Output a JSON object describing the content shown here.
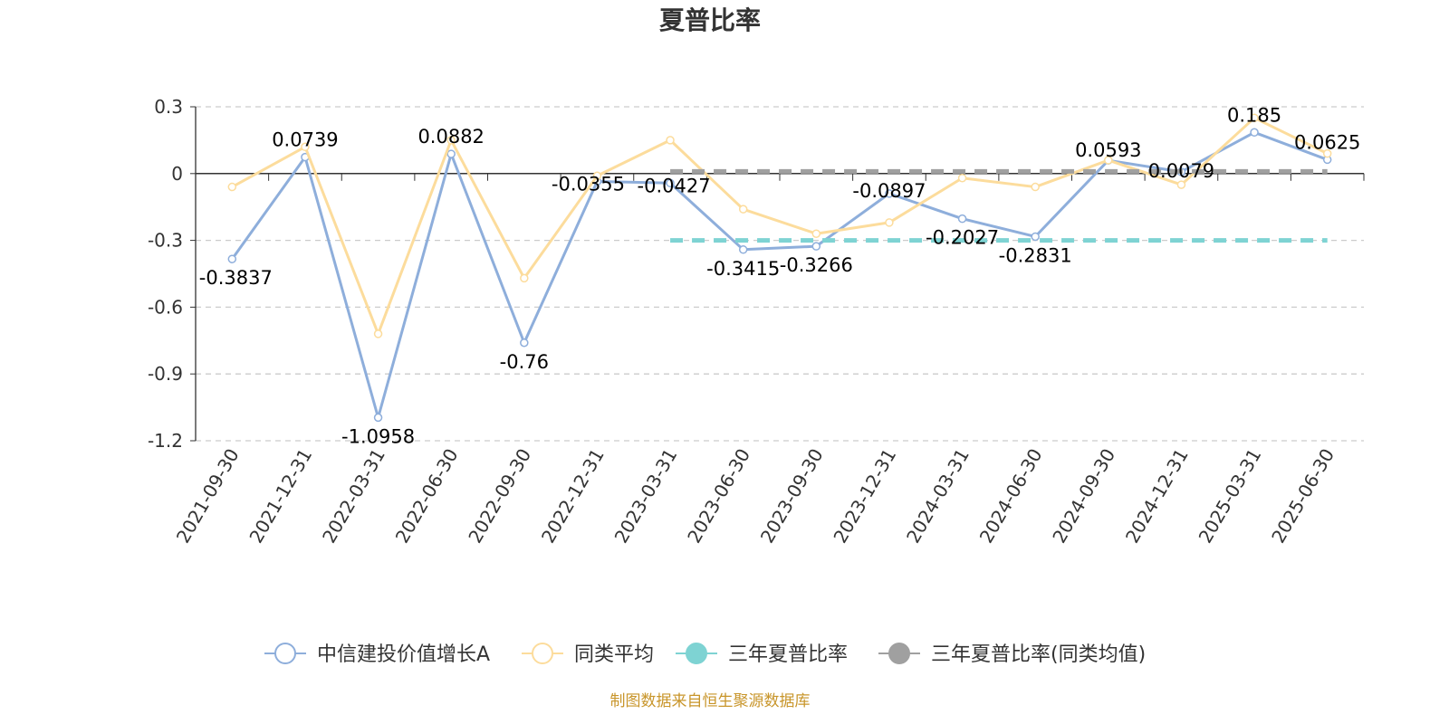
{
  "chart_data": {
    "type": "line",
    "title": "夏普比率",
    "xlabel": "",
    "ylabel": "",
    "ylim": [
      -1.2,
      0.3
    ],
    "yticks": [
      0.3,
      0,
      -0.3,
      -0.6,
      -0.9,
      -1.2
    ],
    "grid": true,
    "legend_position": "bottom",
    "categories": [
      "2021-09-30",
      "2021-12-31",
      "2022-03-31",
      "2022-06-30",
      "2022-09-30",
      "2022-12-31",
      "2023-03-31",
      "2023-06-30",
      "2023-09-30",
      "2023-12-31",
      "2024-03-31",
      "2024-06-30",
      "2024-09-30",
      "2024-12-31",
      "2025-03-31",
      "2025-06-30"
    ],
    "series": [
      {
        "name": "中信建投价值增长A",
        "color": "#8eaedb",
        "values": [
          -0.3837,
          0.0739,
          -1.0958,
          0.0882,
          -0.76,
          -0.0355,
          -0.0427,
          -0.3415,
          -0.3266,
          -0.0897,
          -0.2027,
          -0.2831,
          0.0593,
          0.0079,
          0.185,
          0.0625
        ],
        "labels": [
          "-0.3837",
          "0.0739",
          "-1.0958",
          "0.0882",
          "-0.76",
          "-0.0355",
          "-0.0427",
          "-0.3415",
          "-0.3266",
          "-0.0897",
          "-0.2027",
          "-0.2831",
          "0.0593",
          "0.0079",
          "0.185",
          "0.0625"
        ]
      },
      {
        "name": "同类平均",
        "color": "#fcdc9c",
        "values": [
          -0.06,
          0.12,
          -0.72,
          0.15,
          -0.47,
          -0.01,
          0.15,
          -0.16,
          -0.27,
          -0.22,
          -0.02,
          -0.06,
          0.06,
          -0.05,
          0.25,
          0.09
        ]
      },
      {
        "name": "三年夏普比率",
        "color": "#7ed3d3",
        "style": "dashed",
        "from": 6,
        "to": 15,
        "value": -0.3
      },
      {
        "name": "三年夏普比率(同类均值)",
        "color": "#a0a0a0",
        "style": "dashed",
        "from": 6,
        "to": 15,
        "value": 0.01
      }
    ]
  },
  "footer": {
    "source": "制图数据来自恒生聚源数据库"
  }
}
